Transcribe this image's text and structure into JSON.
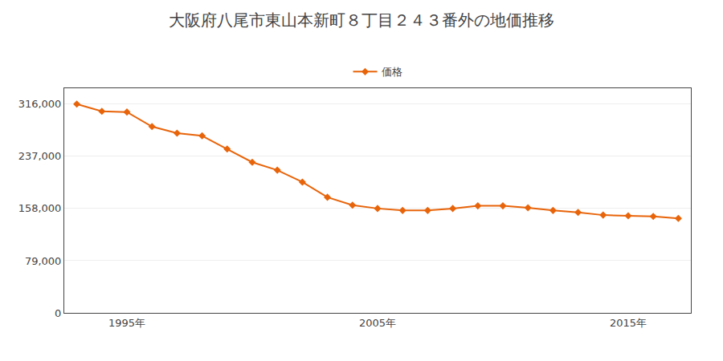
{
  "chart_data": {
    "type": "line",
    "title": "大阪府八尾市東山本新町８丁目２４３番外の地価推移",
    "x": [
      1993,
      1994,
      1995,
      1996,
      1997,
      1998,
      1999,
      2000,
      2001,
      2002,
      2003,
      2004,
      2005,
      2006,
      2007,
      2008,
      2009,
      2010,
      2011,
      2012,
      2013,
      2014,
      2015,
      2016,
      2017
    ],
    "series": [
      {
        "name": "価格",
        "color": "#e8640a",
        "marker": "diamond",
        "values": [
          316000,
          305000,
          304000,
          282000,
          272000,
          268000,
          248000,
          228000,
          216000,
          198000,
          175000,
          163000,
          158000,
          155000,
          155000,
          158000,
          162000,
          162000,
          159000,
          155000,
          152000,
          148000,
          147000,
          146000,
          143000
        ]
      }
    ],
    "xlim": [
      1992.5,
      2017.5
    ],
    "xticks": [
      {
        "value": 1995,
        "label": "1995年"
      },
      {
        "value": 2005,
        "label": "2005年"
      },
      {
        "value": 2015,
        "label": "2015年"
      }
    ],
    "ylim": [
      0,
      340000
    ],
    "yticks": [
      0,
      {
        "value": 79000,
        "label": "79,000"
      },
      {
        "value": 158000,
        "label": "158,000"
      },
      {
        "value": 237000,
        "label": "237,000"
      },
      {
        "value": 316000,
        "label": "316,000"
      }
    ],
    "grid": "y",
    "legend": "top"
  }
}
